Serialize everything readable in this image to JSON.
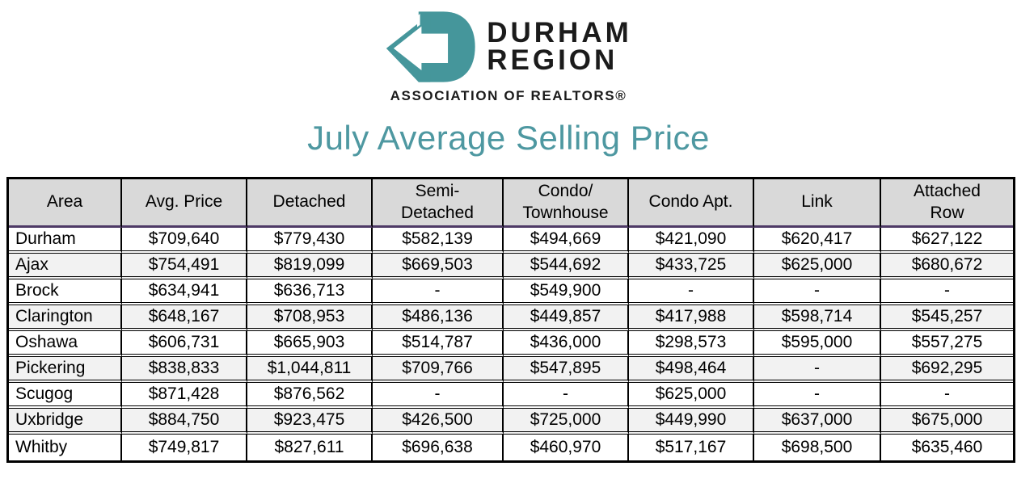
{
  "logo": {
    "line1": "DURHAM",
    "line2": "REGION",
    "subtitle": "ASSOCIATION OF REALTORS®"
  },
  "title": "July Average Selling Price",
  "colors": {
    "logo_teal": "#45969B",
    "title_teal": "#4E98A1",
    "header_bg": "#D9D9D9",
    "alt_row_bg": "#F2F2F2",
    "header_accent_purple": "#4E3A66"
  },
  "table": {
    "headers": [
      "Area",
      "Avg. Price",
      "Detached",
      "Semi-\nDetached",
      "Condo/\nTownhouse",
      "Condo Apt.",
      "Link",
      "Attached\nRow"
    ],
    "rows": [
      [
        "Durham",
        "$709,640",
        "$779,430",
        "$582,139",
        "$494,669",
        "$421,090",
        "$620,417",
        "$627,122"
      ],
      [
        "Ajax",
        "$754,491",
        "$819,099",
        "$669,503",
        "$544,692",
        "$433,725",
        "$625,000",
        "$680,672"
      ],
      [
        "Brock",
        "$634,941",
        "$636,713",
        "-",
        "$549,900",
        "-",
        "-",
        "-"
      ],
      [
        "Clarington",
        "$648,167",
        "$708,953",
        "$486,136",
        "$449,857",
        "$417,988",
        "$598,714",
        "$545,257"
      ],
      [
        "Oshawa",
        "$606,731",
        "$665,903",
        "$514,787",
        "$436,000",
        "$298,573",
        "$595,000",
        "$557,275"
      ],
      [
        "Pickering",
        "$838,833",
        "$1,044,811",
        "$709,766",
        "$547,895",
        "$498,464",
        "-",
        "$692,295"
      ],
      [
        "Scugog",
        "$871,428",
        "$876,562",
        "-",
        "-",
        "$625,000",
        "-",
        "-"
      ],
      [
        "Uxbridge",
        "$884,750",
        "$923,475",
        "$426,500",
        "$725,000",
        "$449,990",
        "$637,000",
        "$675,000"
      ],
      [
        "Whitby",
        "$749,817",
        "$827,611",
        "$696,638",
        "$460,970",
        "$517,167",
        "$698,500",
        "$635,460"
      ]
    ]
  }
}
